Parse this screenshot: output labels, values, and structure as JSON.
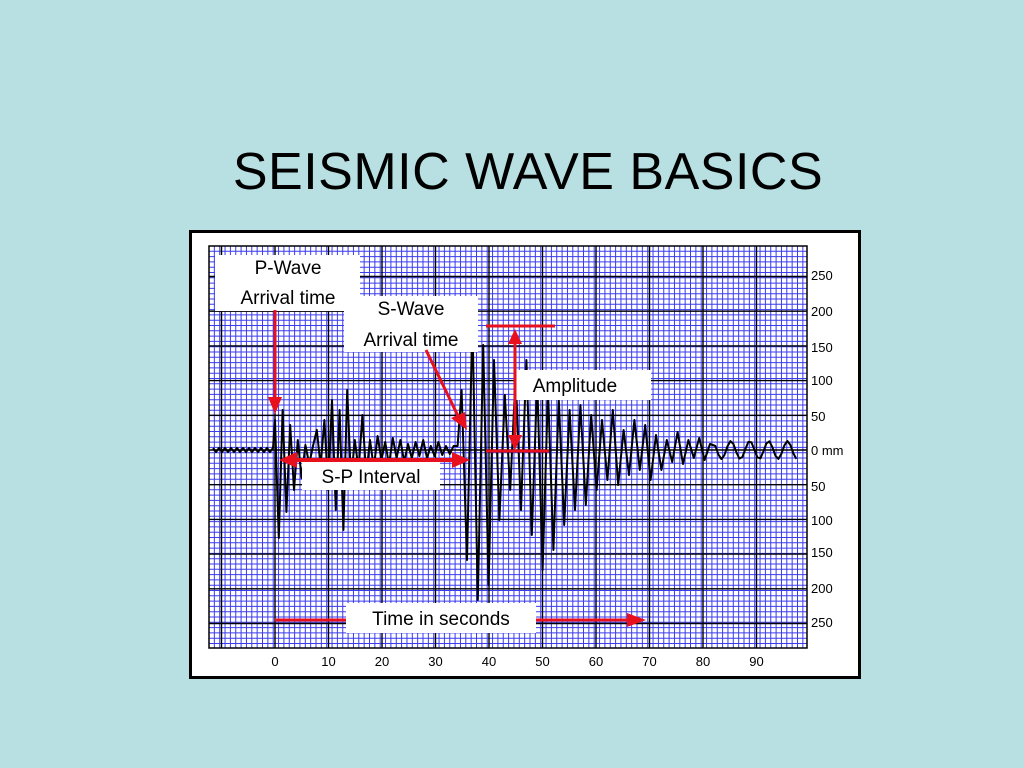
{
  "slide": {
    "title": "SEISMIC WAVE BASICS"
  },
  "figure": {
    "labels": {
      "p_wave_line1": "P-Wave",
      "p_wave_line2": "Arrival time",
      "s_wave_line1": "S-Wave",
      "s_wave_line2": "Arrival time",
      "amplitude": "Amplitude",
      "sp_interval": "S-P Interval",
      "time_axis": "Time in seconds"
    },
    "colors": {
      "background": "#b8dfe2",
      "grid_minor": "#3b3bf0",
      "grid_major": "#000000",
      "trace": "#000000",
      "annotation_arrow": "#e8101c"
    },
    "x_ticks": [
      "0",
      "10",
      "20",
      "30",
      "40",
      "50",
      "60",
      "70",
      "80",
      "90"
    ],
    "y_ticks": [
      "250",
      "200",
      "150",
      "100",
      "50",
      "0 mm",
      "50",
      "100",
      "150",
      "200",
      "250"
    ]
  }
}
